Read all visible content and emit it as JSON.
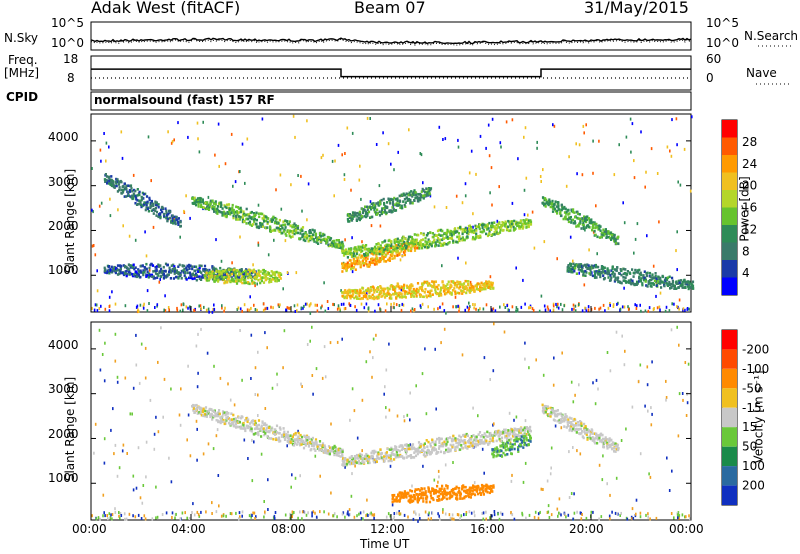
{
  "header": {
    "station": "Adak West (fitACF)",
    "beam": "Beam 07",
    "date": "31/May/2015"
  },
  "chart_data": [
    {
      "type": "line",
      "panel": "noise",
      "left_label": "N.Sky",
      "right_label": "N.Search",
      "ytick_left": [
        "10^5",
        "10^0"
      ],
      "ytick_right": [
        "10^5",
        "10^0"
      ],
      "series": [
        {
          "name": "N.Sky",
          "style": "solid"
        },
        {
          "name": "N.Search",
          "style": "dotted"
        }
      ]
    },
    {
      "type": "line",
      "panel": "frequency",
      "left_label": "Freq.",
      "left_unit": "[MHz]",
      "right_label": "Nave",
      "ytick_left": [
        "18",
        "8"
      ],
      "ytick_right": [
        "60",
        "0"
      ],
      "x_hours": [
        0,
        10,
        10,
        18,
        18,
        24
      ],
      "freq_mhz": [
        13.6,
        13.6,
        10.5,
        10.5,
        13.6,
        13.6
      ],
      "nave": [
        16,
        16,
        16,
        16,
        16,
        16
      ]
    },
    {
      "type": "table",
      "panel": "cpid",
      "label": "CPID",
      "value": "normalsound (fast) 157 RF"
    },
    {
      "type": "heatmap",
      "panel": "power",
      "ylabel": "Slant Range [km]",
      "yticks": [
        "1000",
        "2000",
        "3000",
        "4000"
      ],
      "ylim": [
        180,
        4600
      ],
      "xlim": [
        0,
        24
      ],
      "colorbar_label": "Power [dB]",
      "colorbar_ticks": [
        "4",
        "8",
        "12",
        "16",
        "20",
        "24",
        "28"
      ],
      "colorbar_colors": [
        "#0000ff",
        "#1a3aa8",
        "#3a7a6a",
        "#2e8b57",
        "#66c32e",
        "#b4d62a",
        "#f0c020",
        "#ff9a00",
        "#ff5a00",
        "#ff0000"
      ],
      "features": [
        {
          "x": [
            0.5,
            3.5
          ],
          "range_km": [
            3200,
            2200
          ],
          "level": 6
        },
        {
          "x": [
            4.0,
            10.0
          ],
          "range_km": [
            2700,
            1700
          ],
          "level": 12
        },
        {
          "x": [
            0.5,
            6.5
          ],
          "range_km": [
            1150,
            1050
          ],
          "level": 5
        },
        {
          "x": [
            4.5,
            7.5
          ],
          "range_km": [
            1000,
            1000
          ],
          "level": 16
        },
        {
          "x": [
            10.0,
            13.0
          ],
          "range_km": [
            1200,
            1700
          ],
          "level": 22
        },
        {
          "x": [
            10.0,
            17.5
          ],
          "range_km": [
            1500,
            2200
          ],
          "level": 14
        },
        {
          "x": [
            10.2,
            13.5
          ],
          "range_km": [
            2300,
            2900
          ],
          "level": 9
        },
        {
          "x": [
            10.0,
            16.0
          ],
          "range_km": [
            600,
            800
          ],
          "level": 20
        },
        {
          "x": [
            18.0,
            21.0
          ],
          "range_km": [
            2700,
            1800
          ],
          "level": 11
        },
        {
          "x": [
            19.0,
            24.0
          ],
          "range_km": [
            1200,
            800
          ],
          "level": 8
        }
      ]
    },
    {
      "type": "heatmap",
      "panel": "velocity",
      "ylabel": "Slant Range [km]",
      "yticks": [
        "1000",
        "2000",
        "3000",
        "4000"
      ],
      "ylim": [
        180,
        4600
      ],
      "xlim": [
        0,
        24
      ],
      "xticks": [
        "00:00",
        "04:00",
        "08:00",
        "12:00",
        "16:00",
        "20:00",
        "00:00"
      ],
      "xlabel": "Time UT",
      "colorbar_label": "Velocity [m s⁻¹]",
      "colorbar_ticks": [
        "200",
        "100",
        "50",
        "15",
        "-15",
        "-50",
        "-100",
        "-200"
      ],
      "colorbar_colors": [
        "#1030c0",
        "#2a6aa0",
        "#1a8a4a",
        "#6ac83a",
        "#c8c8c8",
        "#f0c020",
        "#ff8a00",
        "#ff4a00",
        "#ff0000"
      ],
      "features": [
        {
          "x": [
            4.0,
            10.0
          ],
          "range_km": [
            2700,
            1700
          ],
          "velocity": 0
        },
        {
          "x": [
            10.0,
            17.5
          ],
          "range_km": [
            1500,
            2200
          ],
          "velocity": 0
        },
        {
          "x": [
            12.0,
            16.0
          ],
          "range_km": [
            700,
            900
          ],
          "velocity": -70
        },
        {
          "x": [
            16.0,
            17.5
          ],
          "range_km": [
            1700,
            2000
          ],
          "velocity": 45
        },
        {
          "x": [
            18.0,
            21.0
          ],
          "range_km": [
            2700,
            1800
          ],
          "velocity": 0
        }
      ]
    }
  ]
}
